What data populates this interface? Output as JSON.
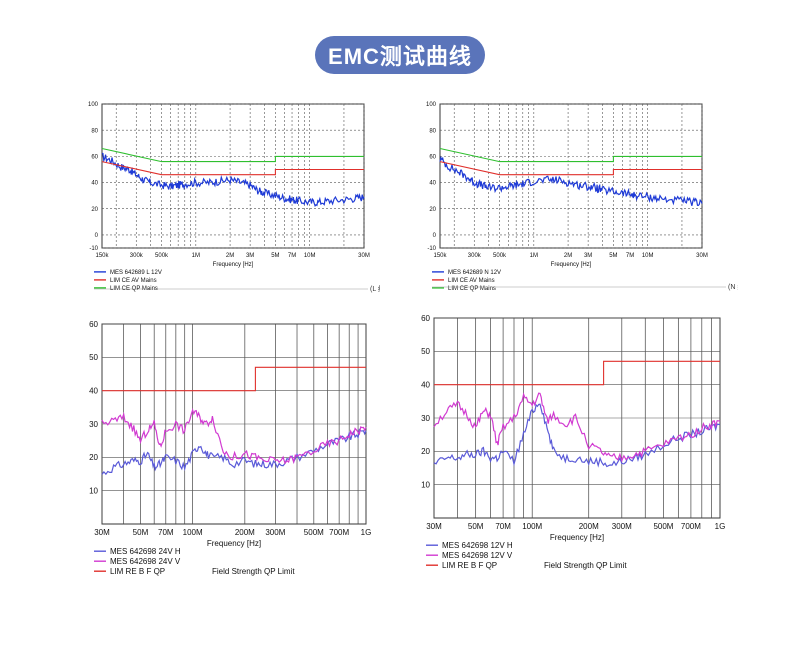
{
  "page_title": "EMC测试曲线",
  "colors": {
    "pill": "#5a74ba",
    "blue": "#1f3bd6",
    "red": "#e0302c",
    "green": "#2fbf2f",
    "magenta": "#d13ad1",
    "grid": "#888888"
  },
  "chart_data": [
    {
      "type": "line",
      "id": "ce-l",
      "xscale": "log",
      "xlim": [
        150000,
        30000000
      ],
      "ylim": [
        -10,
        100
      ],
      "yticks": [
        -10,
        0,
        20,
        40,
        60,
        80,
        100
      ],
      "xtick_labels": [
        {
          "x": 150000,
          "label": "150k"
        },
        {
          "x": 300000,
          "label": "300k"
        },
        {
          "x": 500000,
          "label": "500k"
        },
        {
          "x": 1000000,
          "label": "1M"
        },
        {
          "x": 2000000,
          "label": "2M"
        },
        {
          "x": 3000000,
          "label": "3M"
        },
        {
          "x": 5000000,
          "label": "5M"
        },
        {
          "x": 7000000,
          "label": "7M"
        },
        {
          "x": 10000000,
          "label": "10M"
        },
        {
          "x": 30000000,
          "label": "30M"
        }
      ],
      "xlabel": "Frequency [Hz]",
      "note": "(L 线)",
      "series": [
        {
          "name": "MES  642689 L 12V",
          "color": "#1f3bd6",
          "x": [
            150000,
            180000,
            220000,
            260000,
            300000,
            350000,
            400000,
            500000,
            600000,
            700000,
            800000,
            1000000,
            1300000,
            1600000,
            2000000,
            2500000,
            3000000,
            3500000,
            4000000,
            5000000,
            6000000,
            7000000,
            8000000,
            10000000,
            12000000,
            15000000,
            20000000,
            25000000,
            30000000
          ],
          "y": [
            60,
            57,
            52,
            50,
            46,
            42,
            40,
            38,
            37,
            38,
            39,
            40,
            40,
            41,
            42,
            40,
            38,
            34,
            32,
            30,
            28,
            27,
            26,
            25,
            25,
            26,
            27,
            28,
            29
          ]
        },
        {
          "name": "LIM  CE AV Mains",
          "color": "#e0302c",
          "x": [
            150000,
            500000,
            500000,
            5000000,
            5000000,
            30000000
          ],
          "y": [
            56,
            46,
            46,
            46,
            50,
            50
          ]
        },
        {
          "name": "LIM  CE QP Mains",
          "color": "#2fbf2f",
          "x": [
            150000,
            500000,
            500000,
            5000000,
            5000000,
            30000000
          ],
          "y": [
            66,
            56,
            56,
            56,
            60,
            60
          ]
        }
      ]
    },
    {
      "type": "line",
      "id": "ce-n",
      "xscale": "log",
      "xlim": [
        150000,
        30000000
      ],
      "ylim": [
        -10,
        100
      ],
      "yticks": [
        -10,
        0,
        20,
        40,
        60,
        80,
        100
      ],
      "xtick_labels": [
        {
          "x": 150000,
          "label": "150k"
        },
        {
          "x": 300000,
          "label": "300k"
        },
        {
          "x": 500000,
          "label": "500k"
        },
        {
          "x": 1000000,
          "label": "1M"
        },
        {
          "x": 2000000,
          "label": "2M"
        },
        {
          "x": 3000000,
          "label": "3M"
        },
        {
          "x": 5000000,
          "label": "5M"
        },
        {
          "x": 7000000,
          "label": "7M"
        },
        {
          "x": 10000000,
          "label": "10M"
        },
        {
          "x": 30000000,
          "label": "30M"
        }
      ],
      "xlabel": "Frequency [Hz]",
      "note": "(N 线)",
      "series": [
        {
          "name": "MES  642689 N 12V",
          "color": "#1f3bd6",
          "x": [
            150000,
            180000,
            220000,
            260000,
            300000,
            350000,
            400000,
            500000,
            600000,
            700000,
            800000,
            1000000,
            1300000,
            1600000,
            2000000,
            2500000,
            3000000,
            3500000,
            4000000,
            5000000,
            6000000,
            7000000,
            8000000,
            10000000,
            12000000,
            15000000,
            20000000,
            25000000,
            30000000
          ],
          "y": [
            58,
            52,
            48,
            44,
            40,
            38,
            36,
            36,
            37,
            38,
            39,
            41,
            42,
            42,
            40,
            38,
            37,
            36,
            34,
            33,
            32,
            31,
            30,
            29,
            28,
            27,
            26,
            25,
            24
          ]
        },
        {
          "name": "LIM  CE AV Mains",
          "color": "#e0302c",
          "x": [
            150000,
            500000,
            500000,
            5000000,
            5000000,
            30000000
          ],
          "y": [
            56,
            46,
            46,
            46,
            50,
            50
          ]
        },
        {
          "name": "LIM  CE QP Mains",
          "color": "#2fbf2f",
          "x": [
            150000,
            500000,
            500000,
            5000000,
            5000000,
            30000000
          ],
          "y": [
            66,
            56,
            56,
            56,
            60,
            60
          ]
        }
      ]
    },
    {
      "type": "line",
      "id": "re-24v",
      "xscale": "log",
      "xlim": [
        30000000,
        1000000000
      ],
      "ylim": [
        0,
        60
      ],
      "yticks": [
        10,
        20,
        30,
        40,
        50,
        60
      ],
      "xtick_labels": [
        {
          "x": 30000000,
          "label": "30M"
        },
        {
          "x": 50000000,
          "label": "50M"
        },
        {
          "x": 70000000,
          "label": "70M"
        },
        {
          "x": 100000000,
          "label": "100M"
        },
        {
          "x": 200000000,
          "label": "200M"
        },
        {
          "x": 300000000,
          "label": "300M"
        },
        {
          "x": 500000000,
          "label": "500M"
        },
        {
          "x": 700000000,
          "label": "700M"
        },
        {
          "x": 1000000000,
          "label": "1G"
        }
      ],
      "xlabel": "Frequency [Hz]",
      "legend_extra": "Field Strength QP Limit",
      "series": [
        {
          "name": "MES  642698 24V H",
          "color": "#5a5ad8",
          "x": [
            30000000,
            35000000,
            40000000,
            45000000,
            50000000,
            55000000,
            60000000,
            65000000,
            70000000,
            80000000,
            90000000,
            100000000,
            110000000,
            120000000,
            130000000,
            150000000,
            170000000,
            200000000,
            230000000,
            260000000,
            300000000,
            350000000,
            400000000,
            500000000,
            600000000,
            700000000,
            800000000,
            900000000,
            1000000000
          ],
          "y": [
            15,
            17,
            18,
            19,
            19,
            21,
            17,
            18,
            20,
            19,
            17,
            21,
            24,
            21,
            20,
            20,
            18,
            19,
            18,
            18,
            18,
            19,
            20,
            22,
            24,
            25,
            26,
            27,
            28
          ]
        },
        {
          "name": "MES  642698 24V V",
          "color": "#d13ad1",
          "x": [
            30000000,
            35000000,
            40000000,
            45000000,
            50000000,
            55000000,
            60000000,
            65000000,
            70000000,
            80000000,
            90000000,
            100000000,
            110000000,
            120000000,
            130000000,
            150000000,
            170000000,
            200000000,
            230000000,
            260000000,
            300000000,
            350000000,
            400000000,
            500000000,
            600000000,
            700000000,
            800000000,
            900000000,
            1000000000
          ],
          "y": [
            30,
            31,
            32,
            29,
            25,
            28,
            30,
            23,
            28,
            30,
            28,
            34,
            32,
            30,
            32,
            22,
            20,
            21,
            20,
            19,
            19,
            19,
            20,
            22,
            24,
            25,
            27,
            28,
            29
          ]
        },
        {
          "name": "LIM  RE B F QP",
          "color": "#e0302c",
          "x": [
            30000000,
            230000000,
            230000000,
            1000000000
          ],
          "y": [
            40,
            40,
            47,
            47
          ]
        }
      ]
    },
    {
      "type": "line",
      "id": "re-12v",
      "xscale": "log",
      "xlim": [
        30000000,
        1000000000
      ],
      "ylim": [
        0,
        60
      ],
      "yticks": [
        10,
        20,
        30,
        40,
        50,
        60
      ],
      "xtick_labels": [
        {
          "x": 30000000,
          "label": "30M"
        },
        {
          "x": 50000000,
          "label": "50M"
        },
        {
          "x": 70000000,
          "label": "70M"
        },
        {
          "x": 100000000,
          "label": "100M"
        },
        {
          "x": 200000000,
          "label": "200M"
        },
        {
          "x": 300000000,
          "label": "300M"
        },
        {
          "x": 500000000,
          "label": "500M"
        },
        {
          "x": 700000000,
          "label": "700M"
        },
        {
          "x": 1000000000,
          "label": "1G"
        }
      ],
      "xlabel": "Frequency [Hz]",
      "legend_extra": "Field Strength QP Limit",
      "series": [
        {
          "name": "MES  642698 12V H",
          "color": "#5a5ad8",
          "x": [
            30000000,
            35000000,
            40000000,
            45000000,
            50000000,
            55000000,
            60000000,
            65000000,
            70000000,
            80000000,
            90000000,
            100000000,
            110000000,
            120000000,
            130000000,
            150000000,
            170000000,
            200000000,
            230000000,
            260000000,
            300000000,
            350000000,
            400000000,
            500000000,
            600000000,
            700000000,
            800000000,
            900000000,
            1000000000
          ],
          "y": [
            16,
            18,
            18,
            19,
            19,
            20,
            18,
            18,
            20,
            17,
            25,
            32,
            35,
            27,
            20,
            18,
            18,
            17,
            17,
            16,
            17,
            18,
            19,
            22,
            24,
            25,
            26,
            27,
            28
          ]
        },
        {
          "name": "MES  642698 12V V",
          "color": "#d13ad1",
          "x": [
            30000000,
            35000000,
            40000000,
            45000000,
            50000000,
            55000000,
            60000000,
            65000000,
            70000000,
            80000000,
            90000000,
            100000000,
            110000000,
            120000000,
            130000000,
            150000000,
            170000000,
            200000000,
            230000000,
            260000000,
            300000000,
            350000000,
            400000000,
            500000000,
            600000000,
            700000000,
            800000000,
            900000000,
            1000000000
          ],
          "y": [
            28,
            32,
            34,
            31,
            27,
            32,
            31,
            22,
            27,
            30,
            36,
            34,
            37,
            29,
            31,
            28,
            30,
            22,
            20,
            18,
            18,
            19,
            20,
            22,
            24,
            25,
            27,
            28,
            29
          ]
        },
        {
          "name": "LIM  RE B F QP",
          "color": "#e0302c",
          "x": [
            30000000,
            240000000,
            240000000,
            1000000000
          ],
          "y": [
            40,
            40,
            47,
            47
          ]
        }
      ]
    }
  ]
}
